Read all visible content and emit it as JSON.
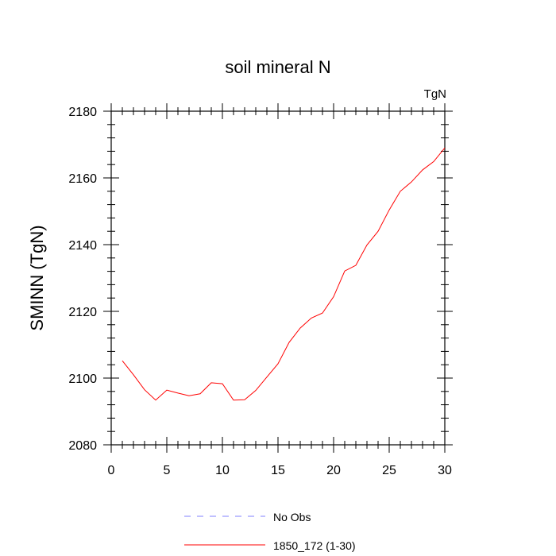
{
  "chart_data": {
    "type": "line",
    "title": "soil mineral N",
    "units_label": "TgN",
    "xlabel": "",
    "ylabel": "SMINN  (TgN)",
    "xlim": [
      0,
      30
    ],
    "ylim": [
      2080,
      2180
    ],
    "x_ticks": [
      0,
      5,
      10,
      15,
      20,
      25,
      30
    ],
    "y_ticks": [
      2080,
      2100,
      2120,
      2140,
      2160,
      2180
    ],
    "grid": false,
    "legend_position": "bottom",
    "series": [
      {
        "name": "No Obs",
        "color": "#8080ff",
        "style": "dashed",
        "x": [],
        "y": []
      },
      {
        "name": "1850_172 (1-30)",
        "color": "#ff0000",
        "style": "solid",
        "x": [
          1,
          2,
          3,
          4,
          5,
          6,
          7,
          8,
          9,
          10,
          11,
          12,
          13,
          14,
          15,
          16,
          17,
          18,
          19,
          20,
          21,
          22,
          23,
          24,
          25,
          26,
          27,
          28,
          29,
          30
        ],
        "y": [
          2105.2,
          2101.0,
          2096.5,
          2093.4,
          2096.4,
          2095.5,
          2094.7,
          2095.3,
          2098.6,
          2098.3,
          2093.4,
          2093.5,
          2096.3,
          2100.3,
          2104.3,
          2110.7,
          2115.0,
          2118.0,
          2119.5,
          2124.4,
          2132.1,
          2133.8,
          2139.9,
          2144.0,
          2150.4,
          2156.0,
          2158.8,
          2162.4,
          2164.9,
          2169.0
        ]
      }
    ]
  }
}
